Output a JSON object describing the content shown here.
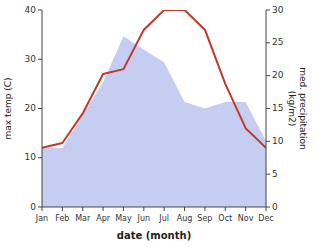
{
  "chart_data": {
    "type": "line",
    "categories": [
      "Jan",
      "Feb",
      "Mar",
      "Apr",
      "May",
      "Jun",
      "Jul",
      "Aug",
      "Sep",
      "Oct",
      "Nov",
      "Dec"
    ],
    "series": [
      {
        "type": "line",
        "color": "#c0392b",
        "values": [
          12,
          13,
          19,
          27,
          28,
          36,
          40,
          40,
          36,
          25,
          16,
          12
        ]
      },
      {
        "type": "area",
        "color": "#c5cdf0",
        "axis": "y2",
        "values": [
          9,
          9,
          14,
          19,
          26,
          24,
          22,
          16,
          15,
          16,
          16,
          10
        ]
      }
    ],
    "ylim": [
      0,
      40
    ],
    "yticks": [
      0,
      10,
      20,
      30,
      40
    ],
    "y2lim": [
      0,
      30
    ],
    "y2ticks": [
      0,
      5,
      10,
      15,
      20,
      25,
      30
    ],
    "xlabel": "date (month)",
    "ylabel": "max temp (C)",
    "y2label": "med. precipitation\n(kg/m2)",
    "grid": false
  }
}
